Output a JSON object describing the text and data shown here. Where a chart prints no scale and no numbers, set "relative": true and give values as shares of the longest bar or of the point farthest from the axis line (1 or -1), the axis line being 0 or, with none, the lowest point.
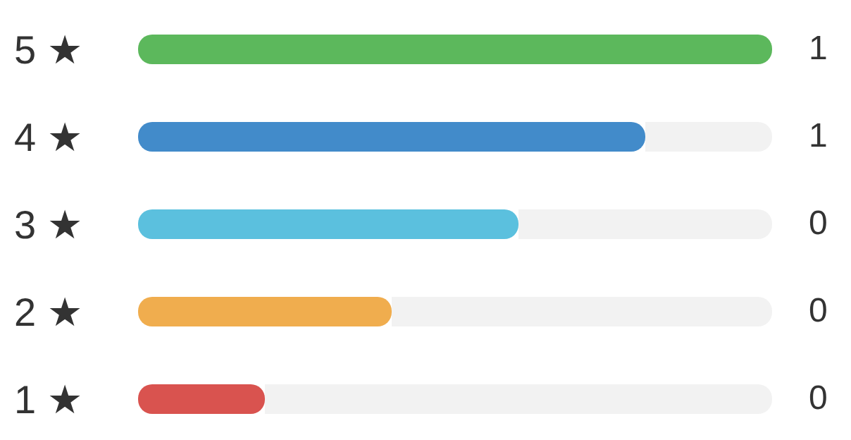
{
  "chart_data": {
    "type": "bar",
    "orientation": "horizontal",
    "relative": true,
    "categories": [
      "5 ★",
      "4 ★",
      "3 ★",
      "2 ★",
      "1 ★"
    ],
    "values": [
      1,
      0.8,
      0.6,
      0.4,
      0.2
    ],
    "colors": [
      "#5cb85c",
      "#428bca",
      "#5bc0de",
      "#f0ad4e",
      "#d9534f"
    ],
    "annotations": [
      "1",
      "1",
      "0",
      "0",
      "0"
    ]
  }
}
